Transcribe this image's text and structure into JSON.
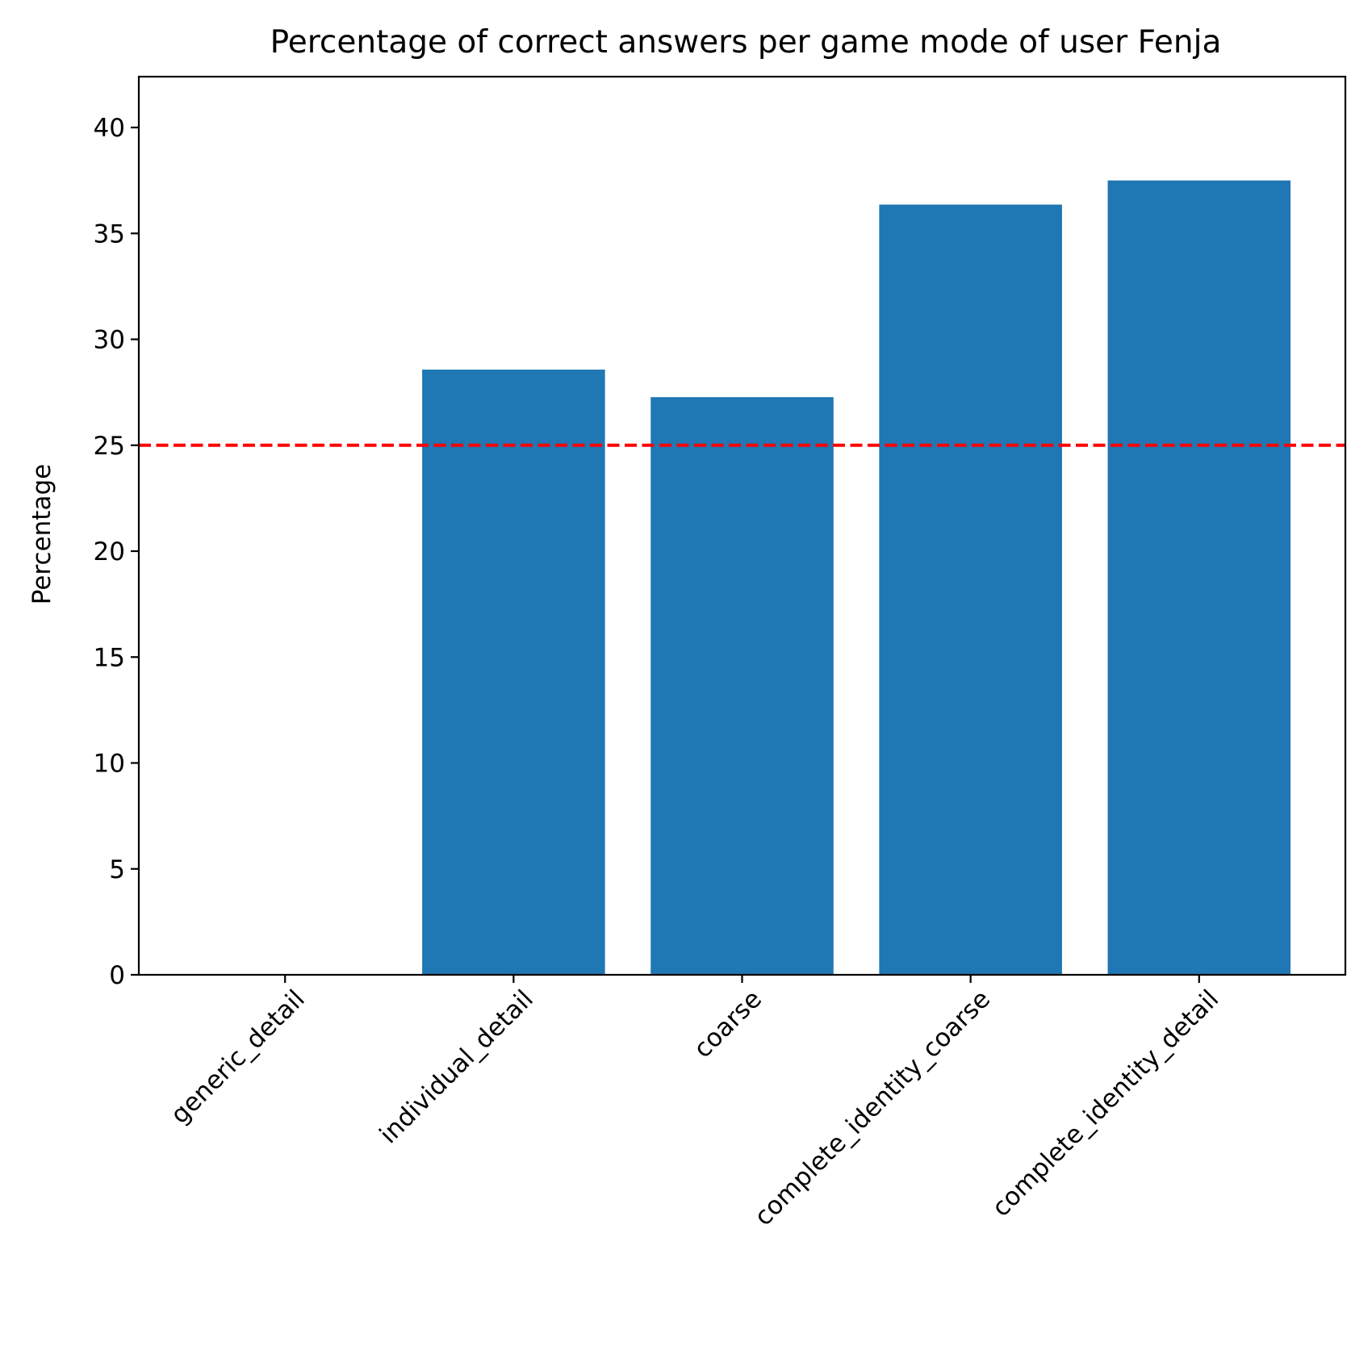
{
  "chart_data": {
    "type": "bar",
    "title": "Percentage of correct answers per game mode of user Fenja",
    "xlabel": "",
    "ylabel": "Percentage",
    "categories": [
      "generic_detail",
      "individual_detail",
      "coarse",
      "complete_identity_coarse",
      "complete_identity_detail"
    ],
    "values": [
      0,
      28.57,
      27.27,
      36.36,
      37.5
    ],
    "ylim": [
      0,
      42.4
    ],
    "yticks": [
      0,
      5,
      10,
      15,
      20,
      25,
      30,
      35,
      40
    ],
    "reference_line": {
      "y": 25,
      "color": "#ff0000",
      "style": "dashed"
    },
    "bar_color": "#1f77b4",
    "grid": false,
    "xtick_rotation": -45
  }
}
